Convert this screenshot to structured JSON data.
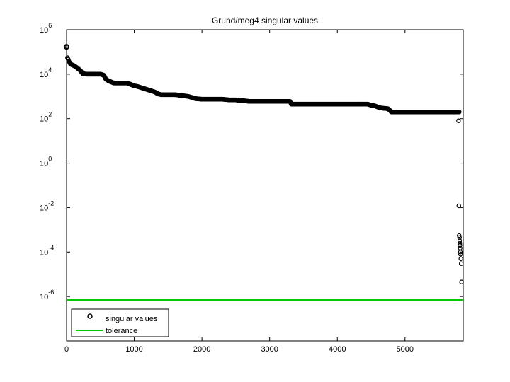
{
  "chart_data": {
    "type": "scatter",
    "title": "Grund/meg4 singular values",
    "xlabel": "",
    "ylabel": "",
    "y_scale": "log",
    "xlim": [
      0,
      5860
    ],
    "ylim_exponent": [
      -8,
      6
    ],
    "x_ticks": [
      "0",
      "1000",
      "2000",
      "3000",
      "4000",
      "5000"
    ],
    "y_ticks": [
      {
        "base": "10",
        "exp": "6"
      },
      {
        "base": "10",
        "exp": "4"
      },
      {
        "base": "10",
        "exp": "2"
      },
      {
        "base": "10",
        "exp": "0"
      },
      {
        "base": "10",
        "exp": "-2"
      },
      {
        "base": "10",
        "exp": "-4"
      },
      {
        "base": "10",
        "exp": "-6"
      }
    ],
    "grid": false,
    "legend_position": "bottom-left",
    "legend": [
      {
        "label": "singular values",
        "marker": "circle",
        "color": "#000000"
      },
      {
        "label": "tolerance",
        "marker": "line",
        "color": "#00cc00"
      }
    ],
    "series": [
      {
        "name": "singular values",
        "color": "#000000",
        "curve_x": [
          0,
          5,
          15,
          30,
          60,
          100,
          150,
          200,
          240,
          300,
          400,
          500,
          550,
          580,
          620,
          700,
          800,
          900,
          1000,
          1050,
          1100,
          1200,
          1300,
          1350,
          1400,
          1500,
          1600,
          1700,
          1800,
          1850,
          1900,
          2000,
          2100,
          2200,
          2300,
          2400,
          2500,
          2550,
          2600,
          2700,
          2750,
          2800,
          2900,
          3000,
          3100,
          3200,
          3300,
          3320,
          3500,
          3700,
          3900,
          4100,
          4300,
          4400,
          4450,
          4500,
          4550,
          4600,
          4650,
          4700,
          4750,
          4800,
          5000,
          5200,
          5400,
          5600,
          5800
        ],
        "curve_y": [
          170000,
          170000,
          55000,
          40000,
          28000,
          25000,
          20000,
          15000,
          10500,
          10000,
          10000,
          10000,
          9000,
          6000,
          5000,
          4000,
          4000,
          4000,
          3000,
          2800,
          2500,
          2000,
          1600,
          1300,
          1200,
          1200,
          1200,
          1100,
          1000,
          900,
          800,
          750,
          750,
          750,
          750,
          700,
          700,
          650,
          650,
          600,
          600,
          600,
          600,
          600,
          600,
          600,
          600,
          450,
          450,
          450,
          450,
          450,
          450,
          450,
          450,
          400,
          380,
          330,
          300,
          290,
          280,
          200,
          200,
          200,
          200,
          200,
          200
        ],
        "outlier_x": [
          5790,
          5795,
          5800,
          5805,
          5808,
          5810,
          5812,
          5815,
          5818,
          5820,
          5825,
          5830,
          5835
        ],
        "outlier_y": [
          80,
          0.012,
          0.00055,
          0.00045,
          0.00032,
          0.00025,
          0.0002,
          0.00015,
          0.0001,
          8e-05,
          5e-05,
          3e-05,
          4.5e-06
        ]
      },
      {
        "name": "tolerance",
        "color": "#00cc00",
        "y": 7e-07
      }
    ]
  }
}
